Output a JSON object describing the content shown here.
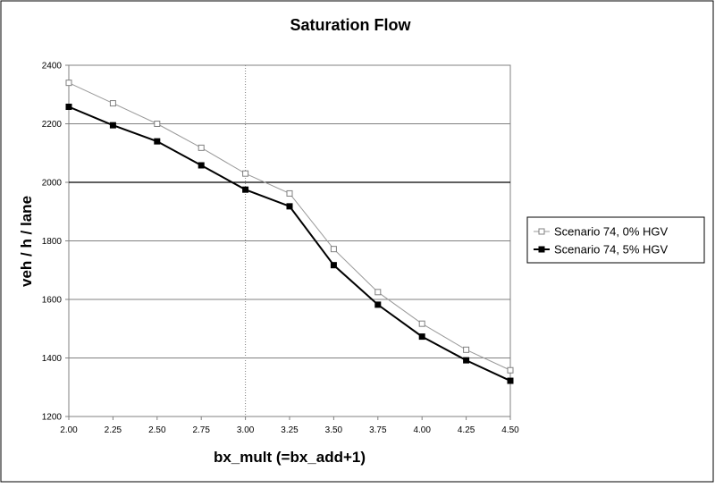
{
  "chart_data": {
    "type": "line",
    "title": "Saturation Flow",
    "xlabel": "bx_mult (=bx_add+1)",
    "ylabel": "veh / h / lane",
    "x": [
      2.0,
      2.25,
      2.5,
      2.75,
      3.0,
      3.25,
      3.5,
      3.75,
      4.0,
      4.25,
      4.5
    ],
    "x_tick_labels": [
      "2.00",
      "2.25",
      "2.50",
      "2.75",
      "3.00",
      "3.25",
      "3.50",
      "3.75",
      "4.00",
      "4.25",
      "4.50"
    ],
    "y_tick_labels": [
      "1200",
      "1400",
      "1600",
      "1800",
      "2000",
      "2200",
      "2400"
    ],
    "xlim": [
      2.0,
      4.5
    ],
    "ylim": [
      1200,
      2400
    ],
    "grid": "horizontal",
    "reference_lines": {
      "vertical_dotted_x": 3.0,
      "horizontal_solid_y": 2000
    },
    "legend_position": "right",
    "series": [
      {
        "name": "Scenario 74, 0% HGV",
        "marker": "open-square",
        "color": "#999999",
        "values": [
          2340,
          2270,
          2200,
          2118,
          2030,
          1962,
          1772,
          1625,
          1517,
          1428,
          1358
        ]
      },
      {
        "name": "Scenario 74, 5% HGV",
        "marker": "filled-square",
        "color": "#000000",
        "values": [
          2258,
          2195,
          2140,
          2058,
          1975,
          1918,
          1717,
          1582,
          1473,
          1392,
          1322
        ]
      }
    ]
  }
}
